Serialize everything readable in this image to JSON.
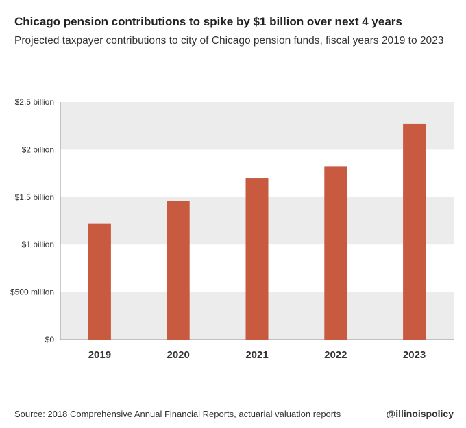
{
  "title": "Chicago pension contributions to spike by $1 billion over next 4 years",
  "subtitle": "Projected taxpayer contributions to city of Chicago pension funds, fiscal years 2019 to 2023",
  "footer": {
    "source": "Source: 2018 Comprehensive Annual Financial Reports, actuarial valuation reports",
    "brand": "@illinoispolicy"
  },
  "colors": {
    "bar": "#c85a3f",
    "band": "#ececec",
    "axis": "#999999"
  },
  "chart_data": {
    "type": "bar",
    "categories": [
      "2019",
      "2020",
      "2021",
      "2022",
      "2023"
    ],
    "values": [
      1.22,
      1.46,
      1.7,
      1.82,
      2.27
    ],
    "ylim": [
      0,
      2.5
    ],
    "ytick_values": [
      0,
      0.5,
      1,
      1.5,
      2,
      2.5
    ],
    "ytick_labels": [
      "$0",
      "$500 million",
      "$1 billion",
      "$1.5 billion",
      "$2 billion",
      "$2.5 billion"
    ],
    "units": "billion dollars",
    "xlabel": "",
    "ylabel": "",
    "grid": "alternating horizontal bands"
  }
}
